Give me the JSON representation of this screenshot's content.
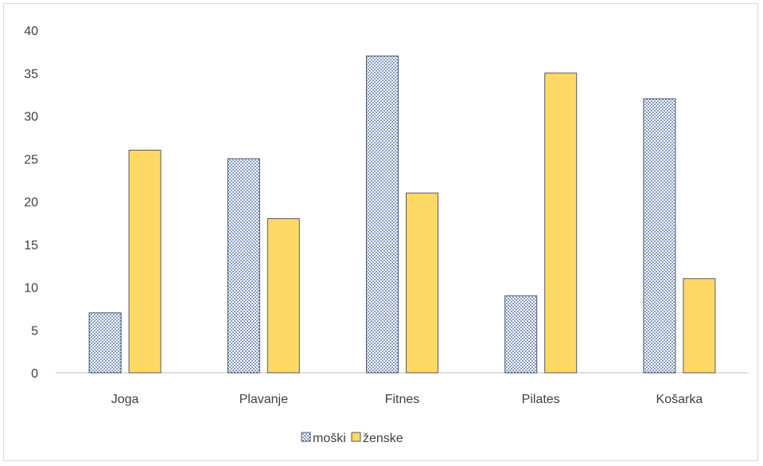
{
  "chart_data": {
    "type": "bar",
    "categories": [
      "Joga",
      "Plavanje",
      "Fitnes",
      "Pilates",
      "Košarka"
    ],
    "series": [
      {
        "name": "moški",
        "values": [
          7,
          25,
          37,
          9,
          32
        ],
        "color": "#2F5597",
        "fill": "dotted-pattern"
      },
      {
        "name": "ženske",
        "values": [
          26,
          18,
          21,
          35,
          11
        ],
        "color": "#FFD966",
        "fill": "solid"
      }
    ],
    "ylim": [
      0,
      40
    ],
    "yticks": [
      0,
      5,
      10,
      15,
      20,
      25,
      30,
      35,
      40
    ],
    "grid": false,
    "legend": "bottom"
  }
}
